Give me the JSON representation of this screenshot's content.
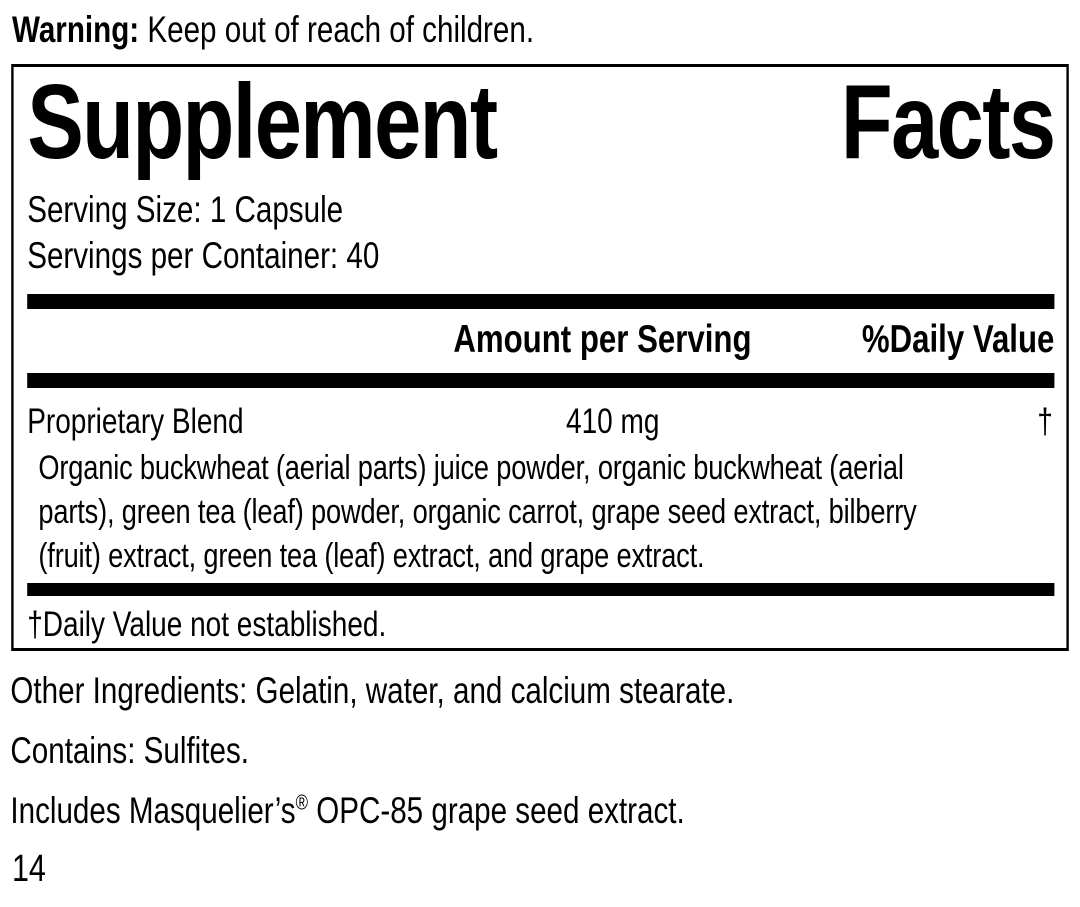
{
  "colors": {
    "foreground": "#000000",
    "background": "#ffffff"
  },
  "warning": {
    "label": "Warning:",
    "text": " Keep out of reach of children."
  },
  "panel": {
    "title": "Supplement Facts",
    "serving_size": "Serving Size: 1 Capsule",
    "servings_per_container": "Servings per Container: 40",
    "columns": {
      "amount": "Amount per Serving",
      "daily_value": "%Daily Value"
    },
    "rows": [
      {
        "name": "Proprietary Blend",
        "amount": "410 mg",
        "daily_value": "†",
        "description_lines": [
          "Organic buckwheat (aerial parts) juice powder, organic buckwheat (aerial",
          "parts), green tea (leaf) powder, organic carrot, grape seed extract, bilberry",
          "(fruit) extract, green tea (leaf) extract, and grape extract."
        ]
      }
    ],
    "footnote": "†Daily Value not established."
  },
  "other_ingredients": "Other Ingredients: Gelatin, water, and calcium stearate.",
  "contains": "Contains: Sulfites.",
  "includes": {
    "before": "Includes Masquelier’s",
    "registered": "®",
    "after": " OPC-85 grape seed extract."
  },
  "page_number": "14"
}
